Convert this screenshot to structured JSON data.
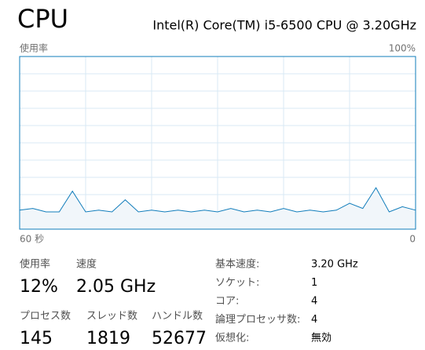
{
  "header": {
    "title": "CPU",
    "processor": "Intel(R) Core(TM) i5-6500 CPU @ 3.20GHz"
  },
  "chart_data": {
    "type": "line",
    "y_label": "使用率",
    "color": "#117dbb",
    "xlim": [
      60,
      0
    ],
    "xticks": [
      {
        "value": 60,
        "label": "60 秒"
      },
      0
    ],
    "ylim": [
      0,
      100
    ],
    "yticks": [
      {
        "value": 100,
        "label": "100%"
      }
    ],
    "x": [
      60,
      58,
      56,
      54,
      52,
      50,
      48,
      46,
      44,
      42,
      40,
      38,
      36,
      34,
      32,
      30,
      28,
      26,
      24,
      22,
      20,
      18,
      16,
      14,
      12,
      10,
      8,
      6,
      4,
      2,
      0
    ],
    "values": [
      11,
      12,
      10,
      10,
      22,
      10,
      11,
      10,
      17,
      10,
      11,
      10,
      11,
      10,
      11,
      10,
      12,
      10,
      11,
      10,
      12,
      10,
      11,
      10,
      11,
      15,
      12,
      24,
      10,
      13,
      11
    ]
  },
  "stats": [
    {
      "label": "使用率",
      "value": "12%"
    },
    {
      "label": "速度",
      "value": "2.05 GHz"
    },
    {
      "label": "プロセス数",
      "value": "145"
    },
    {
      "label": "スレッド数",
      "value": "1819"
    },
    {
      "label": "ハンドル数",
      "value": "52677"
    }
  ],
  "details": [
    {
      "label": "基本速度:",
      "value": "3.20 GHz"
    },
    {
      "label": "ソケット:",
      "value": "1"
    },
    {
      "label": "コア:",
      "value": "4"
    },
    {
      "label": "論理プロセッサ数:",
      "value": "4"
    },
    {
      "label": "仮想化:",
      "value": "無効"
    }
  ]
}
